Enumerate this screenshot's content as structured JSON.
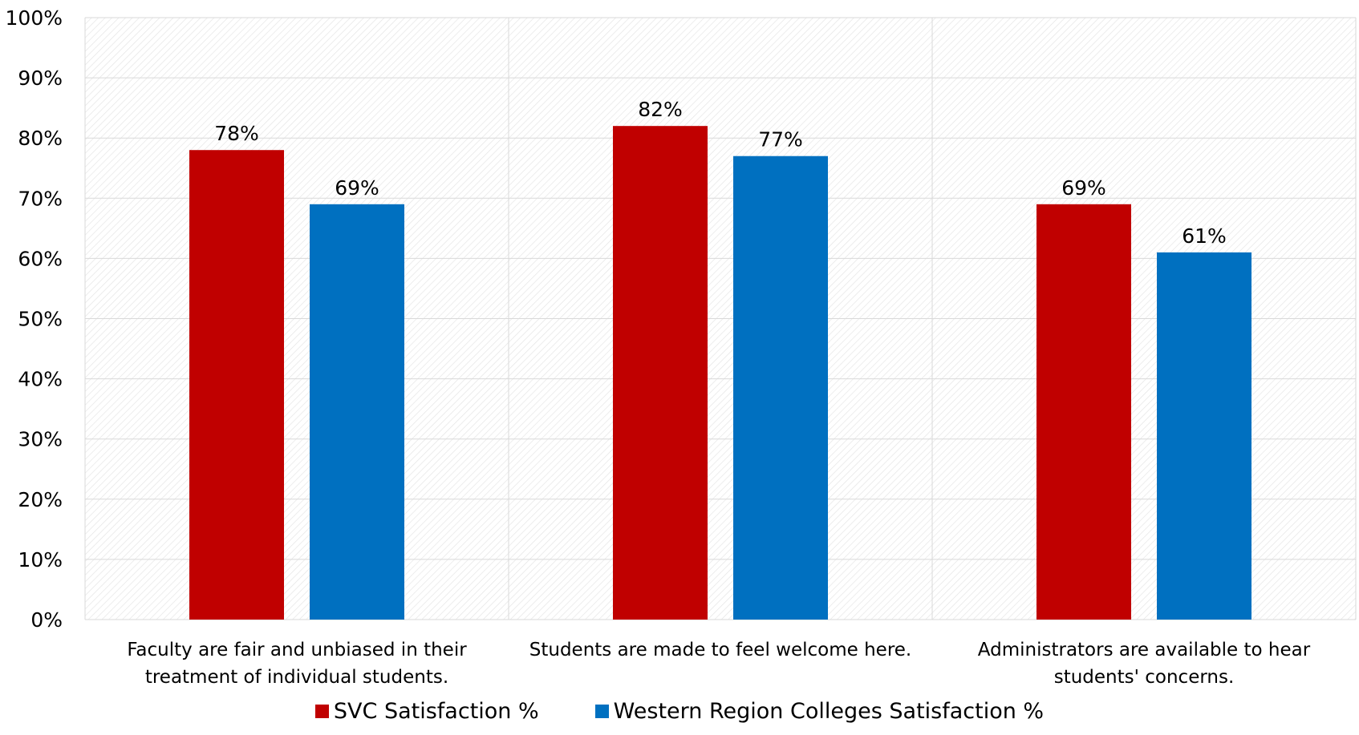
{
  "chart_data": {
    "type": "bar",
    "categories": [
      [
        "Faculty are fair and unbiased in their",
        "treatment of individual students."
      ],
      [
        "Students are made to feel welcome here."
      ],
      [
        "Administrators are available to hear",
        "students' concerns."
      ]
    ],
    "series": [
      {
        "name": "SVC Satisfaction %",
        "values": [
          78,
          82,
          69
        ],
        "labels": [
          "78%",
          "82%",
          "69%"
        ],
        "color": "#c00000"
      },
      {
        "name": "Western Region Colleges Satisfaction %",
        "values": [
          69,
          77,
          61
        ],
        "labels": [
          "69%",
          "77%",
          "61%"
        ],
        "color": "#0070c0"
      }
    ],
    "y_ticks": [
      "0%",
      "10%",
      "20%",
      "30%",
      "40%",
      "50%",
      "60%",
      "70%",
      "80%",
      "90%",
      "100%"
    ],
    "ylim": [
      0,
      100
    ],
    "legend_position": "bottom",
    "grid": true
  }
}
